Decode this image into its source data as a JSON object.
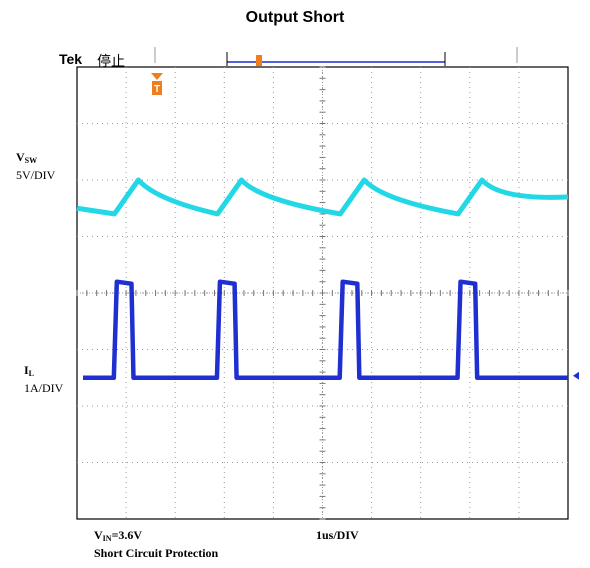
{
  "title": "Output Short",
  "scope": {
    "brand": "Tek",
    "status": "停止",
    "trigger_marker": "T",
    "position_marker": "T"
  },
  "channels": {
    "vsw": {
      "name_main": "V",
      "name_sub": "SW",
      "scale": "5V/DIV",
      "color": "#1f2fd0"
    },
    "il": {
      "name_main": "I",
      "name_sub": "L",
      "scale": "1A/DIV",
      "color": "#22d8e6"
    }
  },
  "footer": {
    "vin_main": "V",
    "vin_sub": "IN",
    "vin_value": "=3.6V",
    "timebase": "1us/DIV",
    "mode": "Short Circuit Protection"
  },
  "chart_data": {
    "type": "line",
    "title": "Output Short",
    "x_divisions": 10,
    "y_divisions": 8,
    "time_per_div": "1us",
    "grid": true,
    "series": [
      {
        "name": "VSW",
        "units": "V",
        "volts_per_div": 5,
        "pulse_starts_div": [
          0.75,
          2.85,
          5.35,
          7.75
        ],
        "pulse_width_div": 0.4,
        "low_level_div": -1.5,
        "high_level_div": 0.2
      },
      {
        "name": "IL",
        "units": "A",
        "amps_per_div": 1,
        "peaks_div": [
          1.25,
          3.35,
          5.85,
          8.25
        ],
        "peak_level_div": 2.0,
        "valley_level_div": 1.4
      }
    ],
    "colors": {
      "grid_dots": "#9a9a9a",
      "frame": "#000000",
      "trigger": "#f07e1c",
      "cursor": "#1f2fd0"
    }
  }
}
